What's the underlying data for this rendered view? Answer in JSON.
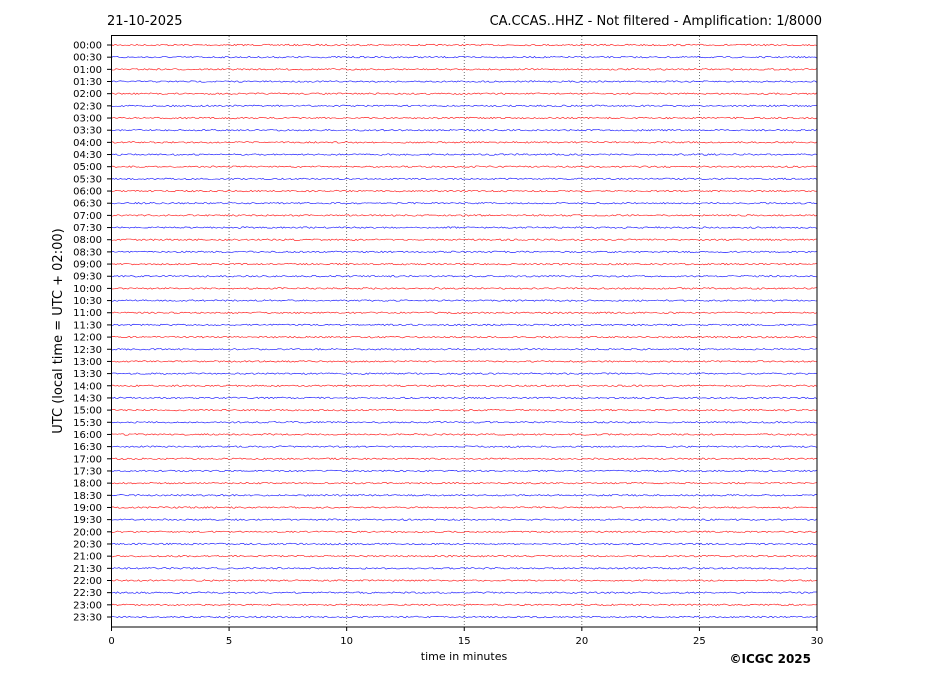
{
  "chart_data": {
    "type": "line",
    "date": "21-10-2025",
    "title": "CA.CCAS..HHZ - Not filtered - Amplification: 1/8000",
    "xlabel": "time in minutes",
    "ylabel": "UTC (local time = UTC + 02:00)",
    "xlim": [
      0,
      30
    ],
    "x_ticks": [
      "0",
      "5",
      "10",
      "15",
      "20",
      "25",
      "30"
    ],
    "y_ticks": [
      "00:00",
      "00:30",
      "01:00",
      "01:30",
      "02:00",
      "02:30",
      "03:00",
      "03:30",
      "04:00",
      "04:30",
      "05:00",
      "05:30",
      "06:00",
      "06:30",
      "07:00",
      "07:30",
      "08:00",
      "08:30",
      "09:00",
      "09:30",
      "10:00",
      "10:30",
      "11:00",
      "11:30",
      "12:00",
      "12:30",
      "13:00",
      "13:30",
      "14:00",
      "14:30",
      "15:00",
      "15:30",
      "16:00",
      "16:30",
      "17:00",
      "17:30",
      "18:00",
      "18:30",
      "19:00",
      "19:30",
      "20:00",
      "20:30",
      "21:00",
      "21:30",
      "22:00",
      "22:30",
      "23:00",
      "23:30"
    ],
    "grid": "vertical dotted at x ticks",
    "trace_colors": [
      "#ff0000",
      "#0000ff"
    ],
    "copyright": "©ICGC 2025"
  }
}
